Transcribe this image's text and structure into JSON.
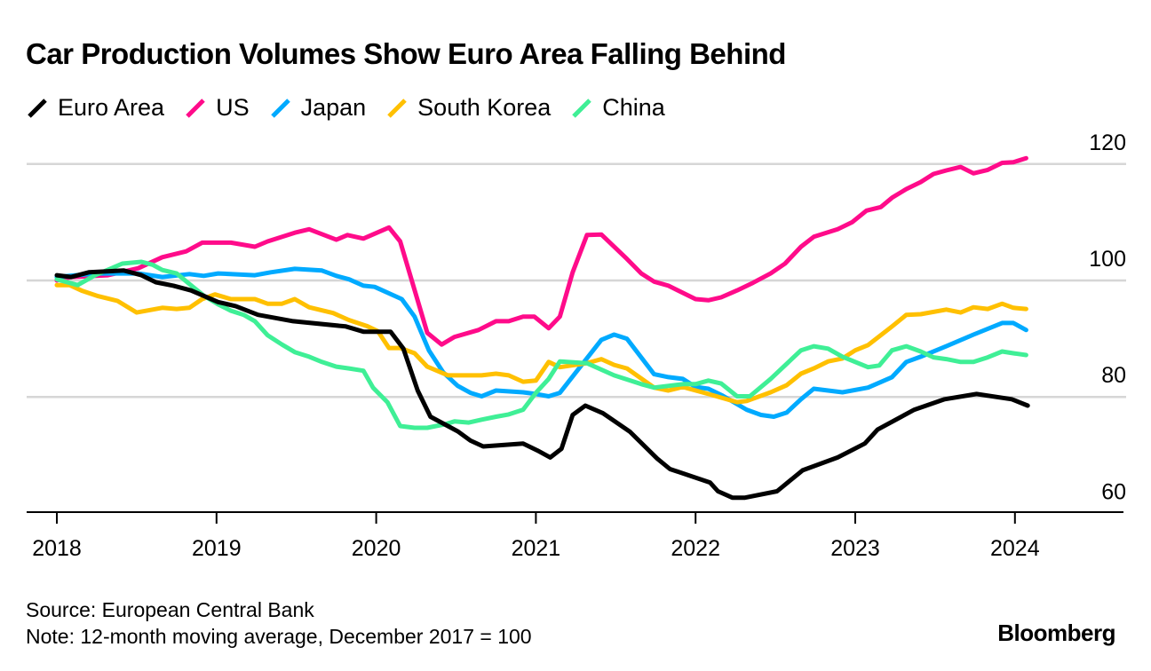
{
  "title": "Car Production Volumes Show Euro Area Falling Behind",
  "source": "Source: European Central Bank",
  "note": "Note: 12-month moving average, December 2017 = 100",
  "logo": "Bloomberg",
  "chart_data": {
    "type": "line",
    "title": "Car Production Volumes Show Euro Area Falling Behind",
    "xlabel": "",
    "ylabel": "",
    "xlim": [
      2018,
      2024.6
    ],
    "ylim": [
      60,
      120
    ],
    "yticks": [
      60,
      80,
      100,
      120
    ],
    "xticks": [
      2018,
      2019,
      2020,
      2021,
      2022,
      2023,
      2024
    ],
    "grid": true,
    "legend_position": "top-left",
    "series": [
      {
        "name": "Euro Area",
        "color": "#000000",
        "points": [
          [
            2018.0,
            100.9
          ],
          [
            2018.09,
            100.6
          ],
          [
            2018.2,
            101.4
          ],
          [
            2018.42,
            101.7
          ],
          [
            2018.53,
            100.9
          ],
          [
            2018.62,
            99.7
          ],
          [
            2018.73,
            99.1
          ],
          [
            2018.84,
            98.3
          ],
          [
            2019.01,
            96.3
          ],
          [
            2019.12,
            95.6
          ],
          [
            2019.26,
            94.1
          ],
          [
            2019.48,
            93.0
          ],
          [
            2019.81,
            92.1
          ],
          [
            2019.92,
            91.2
          ],
          [
            2020.09,
            91.2
          ],
          [
            2020.17,
            88.3
          ],
          [
            2020.26,
            81.1
          ],
          [
            2020.34,
            76.6
          ],
          [
            2020.51,
            74.1
          ],
          [
            2020.59,
            72.5
          ],
          [
            2020.67,
            71.5
          ],
          [
            2020.92,
            72.0
          ],
          [
            2021.01,
            70.8
          ],
          [
            2021.09,
            69.6
          ],
          [
            2021.16,
            71.1
          ],
          [
            2021.23,
            76.9
          ],
          [
            2021.31,
            78.5
          ],
          [
            2021.42,
            77.2
          ],
          [
            2021.59,
            74.0
          ],
          [
            2021.76,
            69.4
          ],
          [
            2021.84,
            67.6
          ],
          [
            2022.09,
            65.3
          ],
          [
            2022.14,
            63.8
          ],
          [
            2022.23,
            62.7
          ],
          [
            2022.31,
            62.7
          ],
          [
            2022.51,
            63.8
          ],
          [
            2022.67,
            67.4
          ],
          [
            2022.89,
            69.6
          ],
          [
            2023.06,
            72.0
          ],
          [
            2023.14,
            74.4
          ],
          [
            2023.37,
            77.8
          ],
          [
            2023.56,
            79.6
          ],
          [
            2023.76,
            80.5
          ],
          [
            2023.98,
            79.6
          ],
          [
            2024.08,
            78.5
          ]
        ]
      },
      {
        "name": "US",
        "color": "#FF0B8A",
        "points": [
          [
            2018.0,
            100.0
          ],
          [
            2018.09,
            100.6
          ],
          [
            2018.32,
            100.9
          ],
          [
            2018.51,
            102.1
          ],
          [
            2018.66,
            104.0
          ],
          [
            2018.81,
            105.0
          ],
          [
            2018.91,
            106.5
          ],
          [
            2019.09,
            106.5
          ],
          [
            2019.24,
            105.8
          ],
          [
            2019.32,
            106.7
          ],
          [
            2019.49,
            108.2
          ],
          [
            2019.58,
            108.8
          ],
          [
            2019.75,
            107.0
          ],
          [
            2019.82,
            107.8
          ],
          [
            2019.92,
            107.2
          ],
          [
            2020.08,
            109.1
          ],
          [
            2020.15,
            106.7
          ],
          [
            2020.32,
            91.0
          ],
          [
            2020.41,
            89.0
          ],
          [
            2020.49,
            90.3
          ],
          [
            2020.64,
            91.5
          ],
          [
            2020.75,
            93.0
          ],
          [
            2020.83,
            93.0
          ],
          [
            2020.92,
            93.8
          ],
          [
            2020.99,
            93.8
          ],
          [
            2021.08,
            91.8
          ],
          [
            2021.15,
            93.8
          ],
          [
            2021.23,
            101.4
          ],
          [
            2021.32,
            107.8
          ],
          [
            2021.41,
            107.9
          ],
          [
            2021.57,
            103.7
          ],
          [
            2021.66,
            101.2
          ],
          [
            2021.74,
            99.8
          ],
          [
            2021.83,
            99.1
          ],
          [
            2022.0,
            96.8
          ],
          [
            2022.08,
            96.6
          ],
          [
            2022.16,
            97.1
          ],
          [
            2022.26,
            98.3
          ],
          [
            2022.36,
            99.6
          ],
          [
            2022.47,
            101.2
          ],
          [
            2022.56,
            102.9
          ],
          [
            2022.66,
            105.8
          ],
          [
            2022.74,
            107.5
          ],
          [
            2022.89,
            108.8
          ],
          [
            2022.98,
            110.0
          ],
          [
            2023.07,
            112.0
          ],
          [
            2023.16,
            112.6
          ],
          [
            2023.23,
            114.2
          ],
          [
            2023.32,
            115.7
          ],
          [
            2023.41,
            116.9
          ],
          [
            2023.49,
            118.3
          ],
          [
            2023.57,
            118.9
          ],
          [
            2023.66,
            119.5
          ],
          [
            2023.74,
            118.4
          ],
          [
            2023.83,
            119.0
          ],
          [
            2023.92,
            120.2
          ],
          [
            2023.99,
            120.3
          ],
          [
            2024.07,
            121.0
          ]
        ]
      },
      {
        "name": "Japan",
        "color": "#00AAFF",
        "points": [
          [
            2018.0,
            100.6
          ],
          [
            2018.24,
            101.2
          ],
          [
            2018.51,
            101.2
          ],
          [
            2018.66,
            100.6
          ],
          [
            2018.83,
            101.1
          ],
          [
            2018.92,
            100.8
          ],
          [
            2019.01,
            101.2
          ],
          [
            2019.24,
            100.9
          ],
          [
            2019.34,
            101.4
          ],
          [
            2019.49,
            102.0
          ],
          [
            2019.66,
            101.7
          ],
          [
            2019.75,
            100.8
          ],
          [
            2019.83,
            100.2
          ],
          [
            2019.92,
            99.1
          ],
          [
            2019.99,
            98.9
          ],
          [
            2020.16,
            96.8
          ],
          [
            2020.24,
            93.8
          ],
          [
            2020.33,
            88.0
          ],
          [
            2020.42,
            84.2
          ],
          [
            2020.51,
            81.9
          ],
          [
            2020.59,
            80.7
          ],
          [
            2020.66,
            80.1
          ],
          [
            2020.75,
            81.1
          ],
          [
            2020.92,
            80.8
          ],
          [
            2021.0,
            80.5
          ],
          [
            2021.08,
            80.1
          ],
          [
            2021.15,
            80.7
          ],
          [
            2021.41,
            89.8
          ],
          [
            2021.49,
            90.7
          ],
          [
            2021.57,
            90.0
          ],
          [
            2021.74,
            83.9
          ],
          [
            2021.83,
            83.4
          ],
          [
            2021.92,
            83.1
          ],
          [
            2022.0,
            81.7
          ],
          [
            2022.08,
            81.4
          ],
          [
            2022.17,
            80.2
          ],
          [
            2022.32,
            77.8
          ],
          [
            2022.41,
            76.9
          ],
          [
            2022.49,
            76.6
          ],
          [
            2022.57,
            77.3
          ],
          [
            2022.66,
            79.6
          ],
          [
            2022.74,
            81.4
          ],
          [
            2022.92,
            80.8
          ],
          [
            2023.08,
            81.6
          ],
          [
            2023.23,
            83.4
          ],
          [
            2023.32,
            86.0
          ],
          [
            2023.41,
            86.9
          ],
          [
            2023.57,
            88.7
          ],
          [
            2023.74,
            90.7
          ],
          [
            2023.92,
            92.7
          ],
          [
            2023.99,
            92.7
          ],
          [
            2024.07,
            91.5
          ]
        ]
      },
      {
        "name": "South Korea",
        "color": "#FFC000",
        "points": [
          [
            2018.0,
            99.2
          ],
          [
            2018.08,
            99.2
          ],
          [
            2018.16,
            98.2
          ],
          [
            2018.26,
            97.3
          ],
          [
            2018.38,
            96.5
          ],
          [
            2018.5,
            94.5
          ],
          [
            2018.66,
            95.3
          ],
          [
            2018.75,
            95.1
          ],
          [
            2018.83,
            95.3
          ],
          [
            2018.91,
            96.8
          ],
          [
            2018.99,
            97.6
          ],
          [
            2019.09,
            96.8
          ],
          [
            2019.24,
            96.8
          ],
          [
            2019.32,
            96.0
          ],
          [
            2019.41,
            96.0
          ],
          [
            2019.49,
            96.8
          ],
          [
            2019.58,
            95.4
          ],
          [
            2019.73,
            94.4
          ],
          [
            2019.83,
            93.2
          ],
          [
            2019.94,
            92.2
          ],
          [
            2020.01,
            91.3
          ],
          [
            2020.08,
            88.4
          ],
          [
            2020.15,
            88.4
          ],
          [
            2020.24,
            87.5
          ],
          [
            2020.32,
            85.2
          ],
          [
            2020.45,
            83.7
          ],
          [
            2020.66,
            83.7
          ],
          [
            2020.75,
            84.0
          ],
          [
            2020.83,
            83.7
          ],
          [
            2020.92,
            82.6
          ],
          [
            2021.0,
            82.8
          ],
          [
            2021.08,
            86.0
          ],
          [
            2021.15,
            85.1
          ],
          [
            2021.32,
            85.8
          ],
          [
            2021.41,
            86.5
          ],
          [
            2021.49,
            85.5
          ],
          [
            2021.57,
            84.9
          ],
          [
            2021.74,
            81.6
          ],
          [
            2021.83,
            81.1
          ],
          [
            2021.92,
            81.7
          ],
          [
            2022.08,
            80.5
          ],
          [
            2022.26,
            79.1
          ],
          [
            2022.32,
            79.3
          ],
          [
            2022.47,
            80.8
          ],
          [
            2022.57,
            82.0
          ],
          [
            2022.66,
            84.0
          ],
          [
            2022.74,
            84.9
          ],
          [
            2022.83,
            86.1
          ],
          [
            2022.92,
            86.6
          ],
          [
            2023.0,
            88.0
          ],
          [
            2023.08,
            88.9
          ],
          [
            2023.23,
            92.1
          ],
          [
            2023.32,
            94.1
          ],
          [
            2023.41,
            94.2
          ],
          [
            2023.57,
            95.0
          ],
          [
            2023.66,
            94.5
          ],
          [
            2023.74,
            95.4
          ],
          [
            2023.83,
            95.1
          ],
          [
            2023.92,
            96.0
          ],
          [
            2023.99,
            95.3
          ],
          [
            2024.07,
            95.1
          ]
        ]
      },
      {
        "name": "China",
        "color": "#3FEF96",
        "points": [
          [
            2018.0,
            100.2
          ],
          [
            2018.13,
            99.2
          ],
          [
            2018.24,
            100.9
          ],
          [
            2018.41,
            102.9
          ],
          [
            2018.53,
            103.2
          ],
          [
            2018.6,
            102.7
          ],
          [
            2018.66,
            101.8
          ],
          [
            2018.75,
            101.2
          ],
          [
            2018.83,
            99.4
          ],
          [
            2018.92,
            97.4
          ],
          [
            2019.01,
            95.9
          ],
          [
            2019.09,
            94.8
          ],
          [
            2019.17,
            94.1
          ],
          [
            2019.24,
            93.0
          ],
          [
            2019.32,
            90.6
          ],
          [
            2019.41,
            89.0
          ],
          [
            2019.49,
            87.7
          ],
          [
            2019.58,
            86.9
          ],
          [
            2019.66,
            86.0
          ],
          [
            2019.75,
            85.2
          ],
          [
            2019.83,
            84.9
          ],
          [
            2019.92,
            84.5
          ],
          [
            2019.98,
            81.6
          ],
          [
            2020.07,
            79.1
          ],
          [
            2020.15,
            75.0
          ],
          [
            2020.24,
            74.7
          ],
          [
            2020.32,
            74.7
          ],
          [
            2020.43,
            75.3
          ],
          [
            2020.49,
            75.8
          ],
          [
            2020.58,
            75.6
          ],
          [
            2020.66,
            76.1
          ],
          [
            2020.75,
            76.6
          ],
          [
            2020.83,
            77.0
          ],
          [
            2020.92,
            77.8
          ],
          [
            2021.0,
            80.7
          ],
          [
            2021.08,
            83.1
          ],
          [
            2021.15,
            86.1
          ],
          [
            2021.32,
            85.8
          ],
          [
            2021.49,
            83.7
          ],
          [
            2021.66,
            82.2
          ],
          [
            2021.74,
            81.6
          ],
          [
            2021.92,
            82.2
          ],
          [
            2022.0,
            82.2
          ],
          [
            2022.08,
            82.8
          ],
          [
            2022.16,
            82.3
          ],
          [
            2022.26,
            80.1
          ],
          [
            2022.34,
            80.1
          ],
          [
            2022.47,
            83.1
          ],
          [
            2022.66,
            88.0
          ],
          [
            2022.74,
            88.7
          ],
          [
            2022.83,
            88.3
          ],
          [
            2022.92,
            86.9
          ],
          [
            2023.0,
            86.0
          ],
          [
            2023.08,
            85.1
          ],
          [
            2023.15,
            85.4
          ],
          [
            2023.23,
            88.0
          ],
          [
            2023.32,
            88.7
          ],
          [
            2023.41,
            87.8
          ],
          [
            2023.49,
            86.8
          ],
          [
            2023.57,
            86.5
          ],
          [
            2023.66,
            86.0
          ],
          [
            2023.74,
            86.0
          ],
          [
            2023.83,
            86.8
          ],
          [
            2023.92,
            87.8
          ],
          [
            2023.99,
            87.5
          ],
          [
            2024.07,
            87.2
          ]
        ]
      }
    ]
  }
}
